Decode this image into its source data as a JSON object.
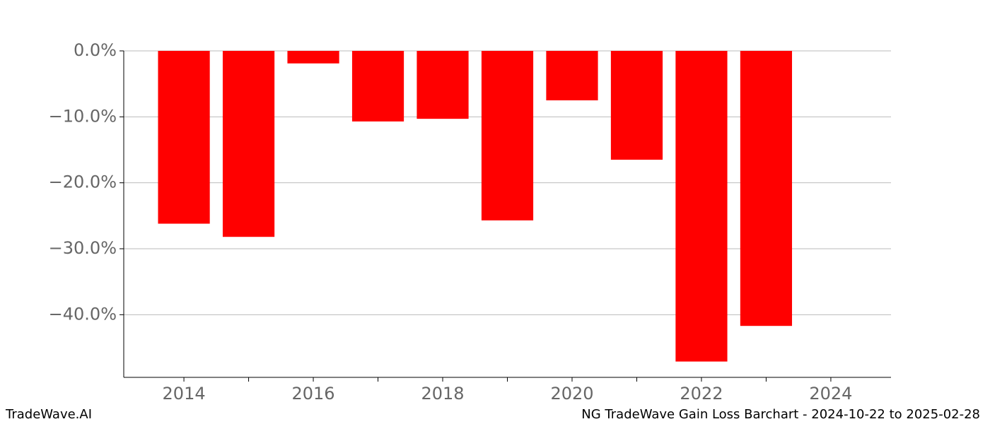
{
  "chart_data": {
    "type": "bar",
    "title": "NG TradeWave Gain Loss Barchart - 2024-10-22 to 2025-02-28",
    "footer_left": "TradeWave.AI",
    "x": [
      2014,
      2015,
      2016,
      2017,
      2018,
      2019,
      2020,
      2021,
      2022,
      2023
    ],
    "values": [
      -26.2,
      -28.2,
      -1.9,
      -10.7,
      -10.3,
      -25.7,
      -7.5,
      -16.5,
      -47.1,
      -41.7
    ],
    "color": "#ff0000",
    "xlim": [
      2013.07,
      2024.93
    ],
    "xticks": [
      2014,
      2016,
      2018,
      2020,
      2022,
      2024
    ],
    "xminorticks": [
      2015,
      2017,
      2019,
      2021,
      2023
    ],
    "ylim": [
      -49.5,
      0
    ],
    "yticks": [
      {
        "value": 0,
        "label": "0.0%"
      },
      {
        "value": -10,
        "label": "−10.0%"
      },
      {
        "value": -20,
        "label": "−20.0%"
      },
      {
        "value": -30,
        "label": "−30.0%"
      },
      {
        "value": -40,
        "label": "−40.0%"
      }
    ],
    "grid": true
  }
}
